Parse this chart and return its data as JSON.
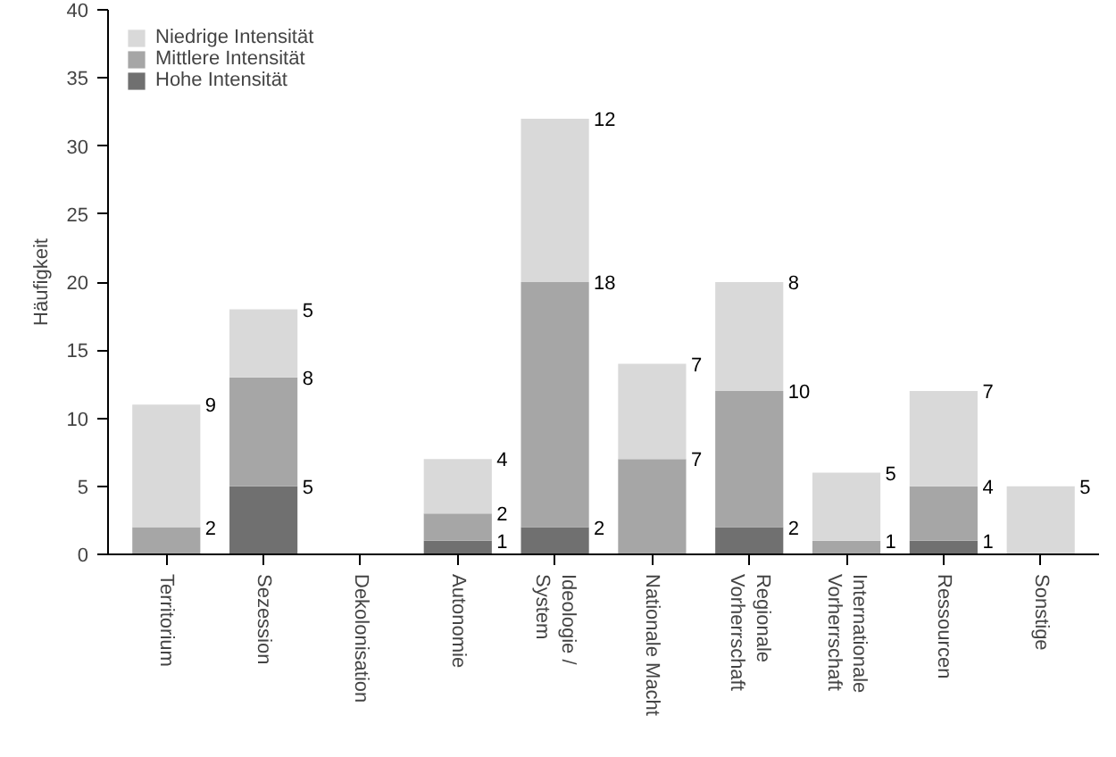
{
  "chart_data": {
    "type": "bar",
    "stacked": true,
    "ylabel": "Häufigkeit",
    "categories": [
      "Territorium",
      "Sezession",
      "Dekolonisation",
      "Autonomie",
      "Ideologie /\nSystem",
      "Nationale Macht",
      "Regionale\nVorherrschaft",
      "Internationale\nVorherrschaft",
      "Ressourcen",
      "Sonstige"
    ],
    "series": [
      {
        "name": "Hohe Intensität",
        "color": "#707070",
        "values": [
          0,
          5,
          0,
          1,
          2,
          0,
          2,
          0,
          1,
          0
        ],
        "value_labels": [
          null,
          "5",
          null,
          "1",
          "2",
          null,
          "2",
          null,
          "1",
          null
        ]
      },
      {
        "name": "Mittlere Intensität",
        "color": "#a6a6a6",
        "values": [
          2,
          8,
          0,
          2,
          18,
          7,
          10,
          1,
          4,
          0
        ],
        "value_labels": [
          "2",
          "8",
          null,
          "2",
          "18",
          "7",
          "10",
          "1",
          "4",
          null
        ]
      },
      {
        "name": "Niedrige Intensität",
        "color": "#d9d9d9",
        "values": [
          9,
          5,
          0,
          4,
          12,
          7,
          8,
          5,
          7,
          5
        ],
        "value_labels": [
          "9",
          "5",
          null,
          "4",
          "12",
          "7",
          "8",
          "5",
          "7",
          "5"
        ]
      }
    ],
    "ylim": [
      0,
      40
    ],
    "yticks": [
      0,
      5,
      10,
      15,
      20,
      25,
      30,
      35,
      40
    ],
    "grid": false,
    "legend": "top left"
  }
}
